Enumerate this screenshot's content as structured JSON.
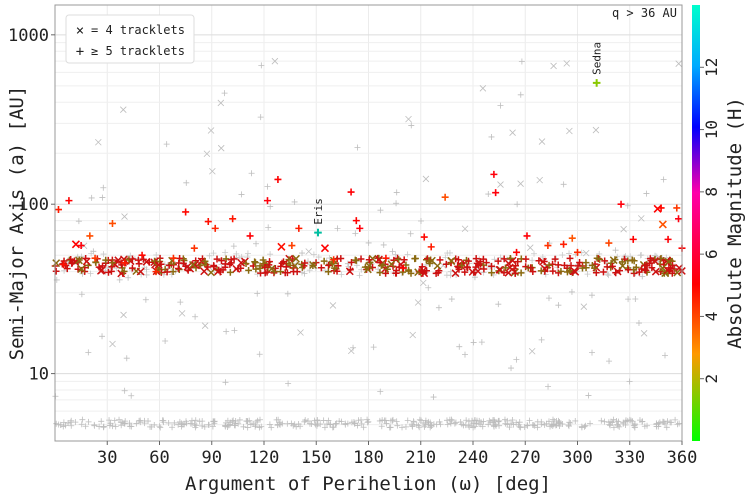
{
  "chart_data": {
    "type": "scatter",
    "title": "",
    "xlabel": "Argument of Perihelion (ω) [deg]",
    "ylabel": "Semi-Major Axis (a) [AU]",
    "colorbar_label": "Absolute Magnitude (H)",
    "note": "q > 36 AU",
    "xlim": [
      0,
      360
    ],
    "ylim": [
      4,
      1500
    ],
    "y_scale": "log",
    "x_ticks": [
      "30",
      "60",
      "90",
      "120",
      "150",
      "180",
      "210",
      "240",
      "270",
      "300",
      "330",
      "360"
    ],
    "y_ticks": [
      "10",
      "100",
      "1000"
    ],
    "colorbar_ticks": [
      "2",
      "4",
      "6",
      "8",
      "10",
      "12"
    ],
    "colorbar_range": [
      0,
      14
    ],
    "grid": true,
    "legend_position": "top-left",
    "legend": [
      {
        "marker": "×",
        "label": "= 4 tracklets"
      },
      {
        "marker": "+",
        "label": "≥ 5 tracklets"
      }
    ],
    "colors": {
      "background_points": "#bdbdbd",
      "primary": "#cc1111",
      "secondary": "#8a6a10"
    },
    "annotations": [
      {
        "label": "Sedna",
        "x": 311,
        "y": 520,
        "h": 1.5
      },
      {
        "label": "Eris",
        "x": 151,
        "y": 68,
        "h": -1.2
      }
    ],
    "highlight_points": [
      [
        2,
        93,
        "+",
        4.6
      ],
      [
        5,
        44,
        "+",
        4.8
      ],
      [
        8,
        105,
        "+",
        5.0
      ],
      [
        12,
        58,
        "x",
        5.0
      ],
      [
        15,
        57,
        "+",
        5.2
      ],
      [
        20,
        65,
        "+",
        3.9
      ],
      [
        23,
        48,
        "+",
        4.2
      ],
      [
        33,
        77,
        "+",
        3.9
      ],
      [
        40,
        45,
        "+",
        4.6
      ],
      [
        50,
        50,
        "+",
        4.9
      ],
      [
        58,
        40,
        "+",
        4.5
      ],
      [
        68,
        48,
        "+",
        4.4
      ],
      [
        75,
        90,
        "+",
        4.9
      ],
      [
        80,
        55,
        "+",
        4.3
      ],
      [
        88,
        79,
        "+",
        4.8
      ],
      [
        92,
        72,
        "+",
        4.5
      ],
      [
        102,
        82,
        "+",
        4.7
      ],
      [
        112,
        65,
        "+",
        5.1
      ],
      [
        122,
        105,
        "+",
        5.2
      ],
      [
        128,
        140,
        "+",
        5.0
      ],
      [
        130,
        56,
        "x",
        4.8
      ],
      [
        136,
        57,
        "+",
        4.1
      ],
      [
        140,
        72,
        "+",
        4.6
      ],
      [
        155,
        55,
        "x",
        5.0
      ],
      [
        160,
        47,
        "+",
        4.4
      ],
      [
        170,
        118,
        "+",
        5.1
      ],
      [
        173,
        80,
        "+",
        5.0
      ],
      [
        175,
        72,
        "+",
        5.2
      ],
      [
        190,
        48,
        "+",
        4.7
      ],
      [
        200,
        42,
        "+",
        5.0
      ],
      [
        212,
        64,
        "+",
        4.9
      ],
      [
        216,
        56,
        "+",
        4.6
      ],
      [
        224,
        110,
        "+",
        3.9
      ],
      [
        252,
        150,
        "+",
        5.2
      ],
      [
        253,
        117,
        "+",
        5.2
      ],
      [
        265,
        52,
        "+",
        5.0
      ],
      [
        271,
        65,
        "+",
        5.1
      ],
      [
        283,
        57,
        "+",
        4.3
      ],
      [
        292,
        58,
        "+",
        4.6
      ],
      [
        297,
        63,
        "+",
        3.8
      ],
      [
        300,
        52,
        "+",
        4.4
      ],
      [
        318,
        59,
        "+",
        4.0
      ],
      [
        325,
        100,
        "+",
        5.2
      ],
      [
        332,
        62,
        "+",
        5.0
      ],
      [
        346,
        94,
        "x",
        5.0
      ],
      [
        348,
        95,
        "+",
        4.9
      ],
      [
        349,
        76,
        "x",
        3.8
      ],
      [
        352,
        62,
        "+",
        5.1
      ],
      [
        357,
        95,
        "+",
        4.2
      ],
      [
        358,
        82,
        "+",
        5.3
      ],
      [
        360,
        55,
        "+",
        5.0
      ]
    ]
  }
}
